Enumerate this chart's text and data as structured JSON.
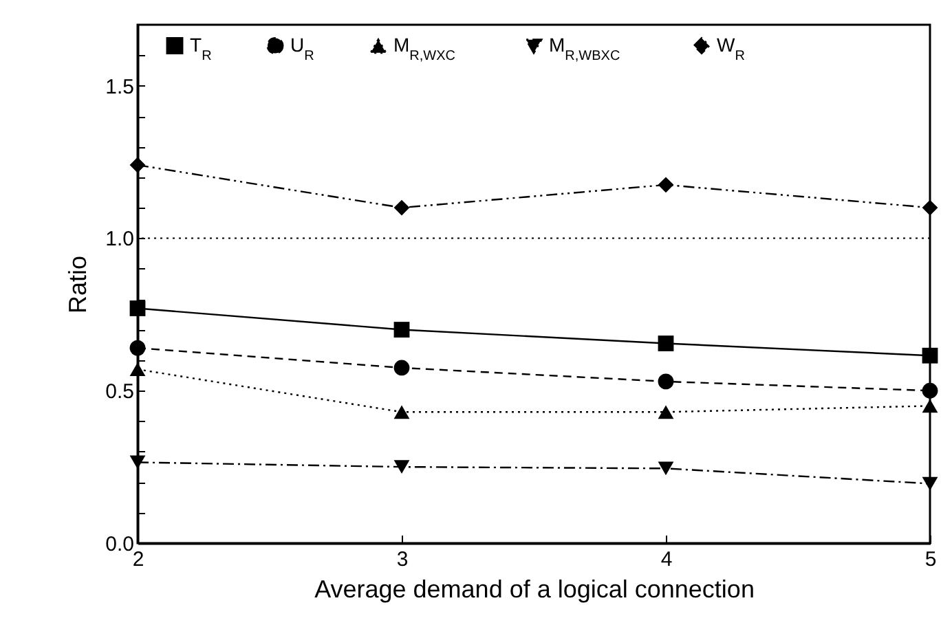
{
  "chart_data": {
    "type": "line",
    "xlabel": "Average demand of a logical connection",
    "ylabel": "Ratio",
    "x": [
      2,
      3,
      4,
      5
    ],
    "xlim": [
      2,
      5
    ],
    "xticks": [
      2,
      3,
      4,
      5
    ],
    "ylim": [
      0,
      1.7
    ],
    "yticks": [
      {
        "value": 0,
        "label": "0.0"
      },
      {
        "value": 0.1,
        "label": null
      },
      {
        "value": 0.2,
        "label": null
      },
      {
        "value": 0.3,
        "label": null
      },
      {
        "value": 0.4,
        "label": null
      },
      {
        "value": 0.5,
        "label": "0.5"
      },
      {
        "value": 0.6,
        "label": null
      },
      {
        "value": 0.7,
        "label": null
      },
      {
        "value": 0.8,
        "label": null
      },
      {
        "value": 0.9,
        "label": null
      },
      {
        "value": 1.0,
        "label": "1.0"
      },
      {
        "value": 1.1,
        "label": null
      },
      {
        "value": 1.2,
        "label": null
      },
      {
        "value": 1.3,
        "label": null
      },
      {
        "value": 1.4,
        "label": null
      },
      {
        "value": 1.5,
        "label": "1.5"
      },
      {
        "value": 1.6,
        "label": null
      }
    ],
    "grid": false,
    "legend": "top",
    "ref_lines": [
      {
        "axis": "y",
        "value": 1.0,
        "color": "#000000",
        "line_style": "dotted"
      }
    ],
    "series": [
      {
        "name": "T$_{R}$",
        "color": "#000000",
        "marker": "square",
        "line_style": "solid",
        "values": [
          0.77,
          0.7,
          0.655,
          0.615
        ]
      },
      {
        "name": "U$_{R}$",
        "color": "#000000",
        "marker": "circle",
        "line_style": "dashed",
        "values": [
          0.64,
          0.575,
          0.53,
          0.5
        ]
      },
      {
        "name": "M$_{R,WXC}$",
        "color": "#000000",
        "marker": "triangle",
        "line_style": "dotted",
        "values": [
          0.57,
          0.43,
          0.43,
          0.45
        ]
      },
      {
        "name": "M$_{R,WBXC}$",
        "color": "#000000",
        "marker": "triangle-down",
        "line_style": "dashdot",
        "values": [
          0.265,
          0.25,
          0.245,
          0.195
        ]
      },
      {
        "name": "W$_{R}$",
        "color": "#000000",
        "marker": "diamond",
        "line_style": "dashdotdot",
        "values": [
          1.24,
          1.1,
          1.175,
          1.1
        ]
      }
    ]
  }
}
